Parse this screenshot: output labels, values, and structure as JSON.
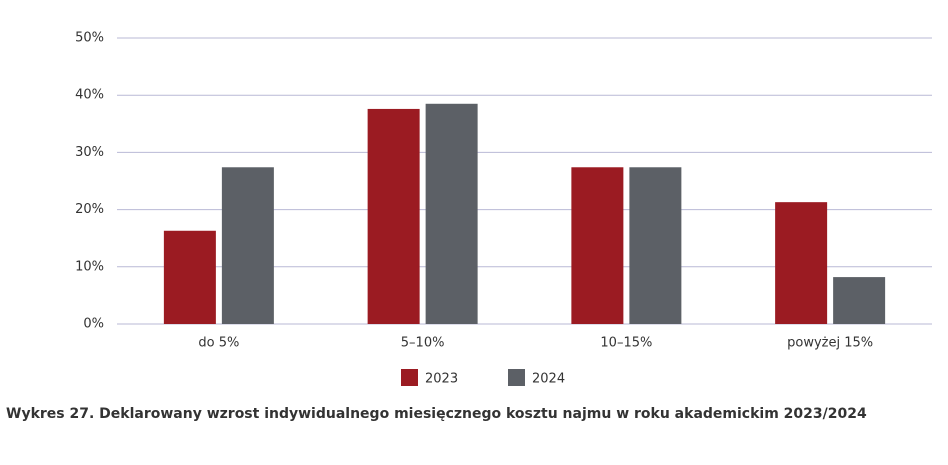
{
  "chart_data": {
    "type": "bar",
    "title": "Wykres 27. Deklarowany wzrost indywidualnego miesięcznego kosztu najmu w roku akademickim 2023/2024",
    "categories": [
      "do 5%",
      "5–10%",
      "10–15%",
      "powyżej 15%"
    ],
    "series": [
      {
        "name": "2023",
        "color": "#9b1b22",
        "values": [
          16.3,
          37.6,
          27.4,
          21.3
        ]
      },
      {
        "name": "2024",
        "color": "#5c6066",
        "values": [
          27.4,
          38.5,
          27.4,
          8.2
        ]
      }
    ],
    "ylim": [
      0,
      50
    ],
    "yticks": [
      {
        "value": 0,
        "label": "0%"
      },
      {
        "value": 10,
        "label": "10%"
      },
      {
        "value": 20,
        "label": "20%"
      },
      {
        "value": 30,
        "label": "30%"
      },
      {
        "value": 40,
        "label": "40%"
      },
      {
        "value": 50,
        "label": "50%"
      }
    ],
    "grid": true
  }
}
